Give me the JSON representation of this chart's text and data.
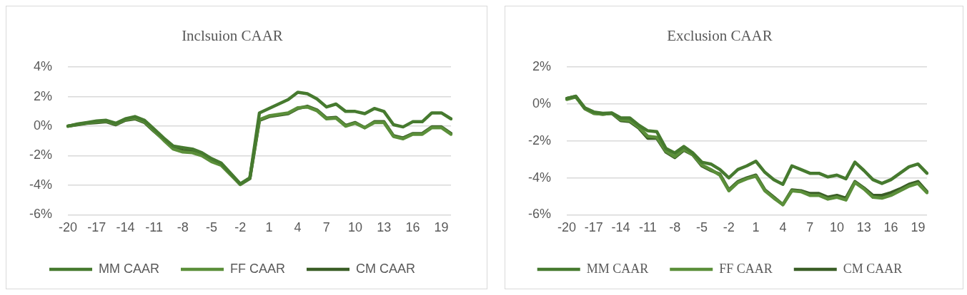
{
  "chart_data": [
    {
      "type": "line",
      "title": "Inclsuion CAAR",
      "categories": [
        "-20",
        null,
        null,
        "-17",
        null,
        null,
        "-14",
        null,
        null,
        "-11",
        null,
        null,
        "-8",
        null,
        null,
        "-5",
        null,
        null,
        "-2",
        null,
        null,
        "1",
        null,
        null,
        "4",
        null,
        null,
        "7",
        null,
        null,
        "10",
        null,
        null,
        "13",
        null,
        null,
        "16",
        null,
        null,
        "19",
        null
      ],
      "series": [
        {
          "name": "MM CAAR",
          "color": "#467a2f",
          "values": [
            0.0,
            0.15,
            0.25,
            0.35,
            0.4,
            0.2,
            0.5,
            0.65,
            0.4,
            -0.2,
            -0.8,
            -1.35,
            -1.45,
            -1.55,
            -1.8,
            -2.2,
            -2.5,
            -3.2,
            -3.9,
            -3.5,
            0.9,
            1.2,
            1.5,
            1.8,
            2.3,
            2.2,
            1.85,
            1.3,
            1.5,
            1.0,
            1.0,
            0.85,
            1.2,
            1.0,
            0.1,
            -0.05,
            0.3,
            0.3,
            0.9,
            0.9,
            0.5
          ]
        },
        {
          "name": "FF CAAR",
          "color": "#5b8f3a",
          "values": [
            0.0,
            0.12,
            0.22,
            0.3,
            0.35,
            0.15,
            0.45,
            0.55,
            0.3,
            -0.3,
            -0.95,
            -1.55,
            -1.75,
            -1.8,
            -2.0,
            -2.4,
            -2.65,
            -3.3,
            -3.95,
            -3.5,
            0.45,
            0.7,
            0.8,
            0.9,
            1.25,
            1.3,
            1.05,
            0.5,
            0.55,
            0.0,
            0.2,
            -0.1,
            0.25,
            0.25,
            -0.7,
            -0.85,
            -0.55,
            -0.55,
            -0.1,
            -0.1,
            -0.55
          ]
        },
        {
          "name": "CM CAAR",
          "color": "#3a5e26",
          "values": [
            0.0,
            0.1,
            0.2,
            0.25,
            0.3,
            0.1,
            0.4,
            0.5,
            0.25,
            -0.35,
            -0.9,
            -1.45,
            -1.65,
            -1.7,
            -1.9,
            -2.3,
            -2.6,
            -3.25,
            -3.95,
            -3.55,
            0.4,
            0.65,
            0.75,
            0.85,
            1.2,
            1.35,
            1.1,
            0.55,
            0.6,
            0.05,
            0.25,
            -0.1,
            0.3,
            0.3,
            -0.65,
            -0.8,
            -0.5,
            -0.5,
            -0.05,
            -0.05,
            -0.5
          ]
        }
      ],
      "ylim": [
        -6,
        4
      ],
      "yticks": [
        {
          "value": -6,
          "label": "-6%"
        },
        {
          "value": -4,
          "label": "-4%"
        },
        {
          "value": -2,
          "label": "-2%"
        },
        {
          "value": 0,
          "label": "0%"
        },
        {
          "value": 2,
          "label": "2%"
        },
        {
          "value": 4,
          "label": "4%"
        }
      ],
      "grid": "y",
      "legend": "bottom",
      "marker": "none",
      "line_style": "solid"
    },
    {
      "type": "line",
      "title": "Exclusion CAAR",
      "categories": [
        "-20",
        null,
        null,
        "-17",
        null,
        null,
        "-14",
        null,
        null,
        "-11",
        null,
        null,
        "-8",
        null,
        null,
        "-5",
        null,
        null,
        "-2",
        null,
        null,
        "1",
        null,
        null,
        "4",
        null,
        null,
        "7",
        null,
        null,
        "10",
        null,
        null,
        "13",
        null,
        null,
        "16",
        null,
        null,
        "19",
        null
      ],
      "series": [
        {
          "name": "MM CAAR",
          "color": "#467a2f",
          "values": [
            0.3,
            0.42,
            -0.2,
            -0.43,
            -0.5,
            -0.48,
            -0.75,
            -0.75,
            -1.15,
            -1.45,
            -1.5,
            -2.4,
            -2.65,
            -2.3,
            -2.65,
            -3.15,
            -3.25,
            -3.55,
            -4.0,
            -3.55,
            -3.35,
            -3.1,
            -3.7,
            -4.1,
            -4.35,
            -3.35,
            -3.55,
            -3.75,
            -3.75,
            -3.95,
            -3.85,
            -4.05,
            -3.15,
            -3.6,
            -4.1,
            -4.3,
            -4.1,
            -3.75,
            -3.4,
            -3.25,
            -3.75
          ]
        },
        {
          "name": "FF CAAR",
          "color": "#5b8f3a",
          "values": [
            0.25,
            0.38,
            -0.25,
            -0.5,
            -0.55,
            -0.5,
            -0.85,
            -0.9,
            -1.25,
            -1.75,
            -1.8,
            -2.55,
            -2.85,
            -2.45,
            -2.75,
            -3.3,
            -3.55,
            -3.85,
            -4.7,
            -4.25,
            -4.05,
            -3.9,
            -4.7,
            -5.1,
            -5.45,
            -4.7,
            -4.75,
            -4.95,
            -4.95,
            -5.15,
            -5.05,
            -5.2,
            -4.25,
            -4.6,
            -5.05,
            -5.1,
            -4.95,
            -4.7,
            -4.45,
            -4.3,
            -4.8
          ]
        },
        {
          "name": "CM CAAR",
          "color": "#3a5e26",
          "values": [
            0.3,
            0.42,
            -0.25,
            -0.5,
            -0.55,
            -0.5,
            -0.9,
            -0.95,
            -1.3,
            -1.85,
            -1.85,
            -2.6,
            -2.9,
            -2.5,
            -2.75,
            -3.35,
            -3.6,
            -3.8,
            -4.65,
            -4.2,
            -4.0,
            -3.85,
            -4.65,
            -5.05,
            -5.45,
            -4.65,
            -4.7,
            -4.85,
            -4.85,
            -5.05,
            -4.95,
            -5.1,
            -4.2,
            -4.55,
            -4.95,
            -4.95,
            -4.8,
            -4.6,
            -4.35,
            -4.2,
            -4.75
          ]
        }
      ],
      "ylim": [
        -6,
        2
      ],
      "yticks": [
        {
          "value": -6,
          "label": "-6%"
        },
        {
          "value": -4,
          "label": "-4%"
        },
        {
          "value": -2,
          "label": "-2%"
        },
        {
          "value": 0,
          "label": "0%"
        },
        {
          "value": 2,
          "label": "2%"
        }
      ],
      "grid": "y",
      "legend": "bottom",
      "marker": "none",
      "line_style": "solid"
    }
  ]
}
